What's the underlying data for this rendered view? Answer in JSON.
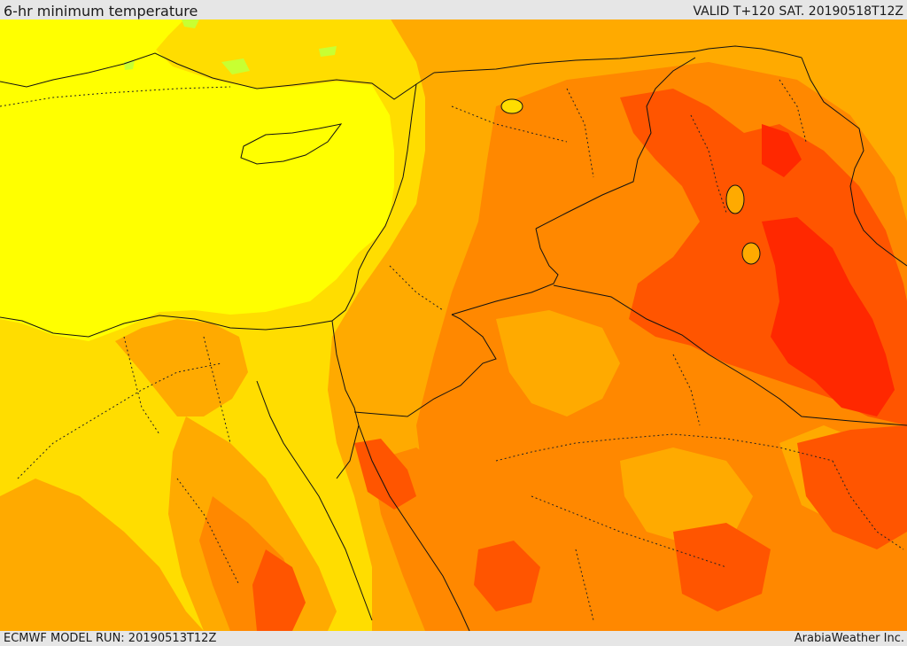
{
  "header": {
    "title": "6-hr minimum temperature",
    "valid": "VALID T+120 SAT. 20190518T12Z"
  },
  "footer": {
    "model_run": "ECMWF MODEL RUN: 20190513T12Z",
    "brand": "ArabiaWeather Inc."
  },
  "colors": {
    "level_1": "#ffff00",
    "level_2": "#ffdd00",
    "level_3": "#ffaa00",
    "level_4": "#ff8800",
    "level_5": "#ff5500",
    "level_6": "#ff2800",
    "green_patch": "#c8ff32",
    "border": "#111111"
  }
}
